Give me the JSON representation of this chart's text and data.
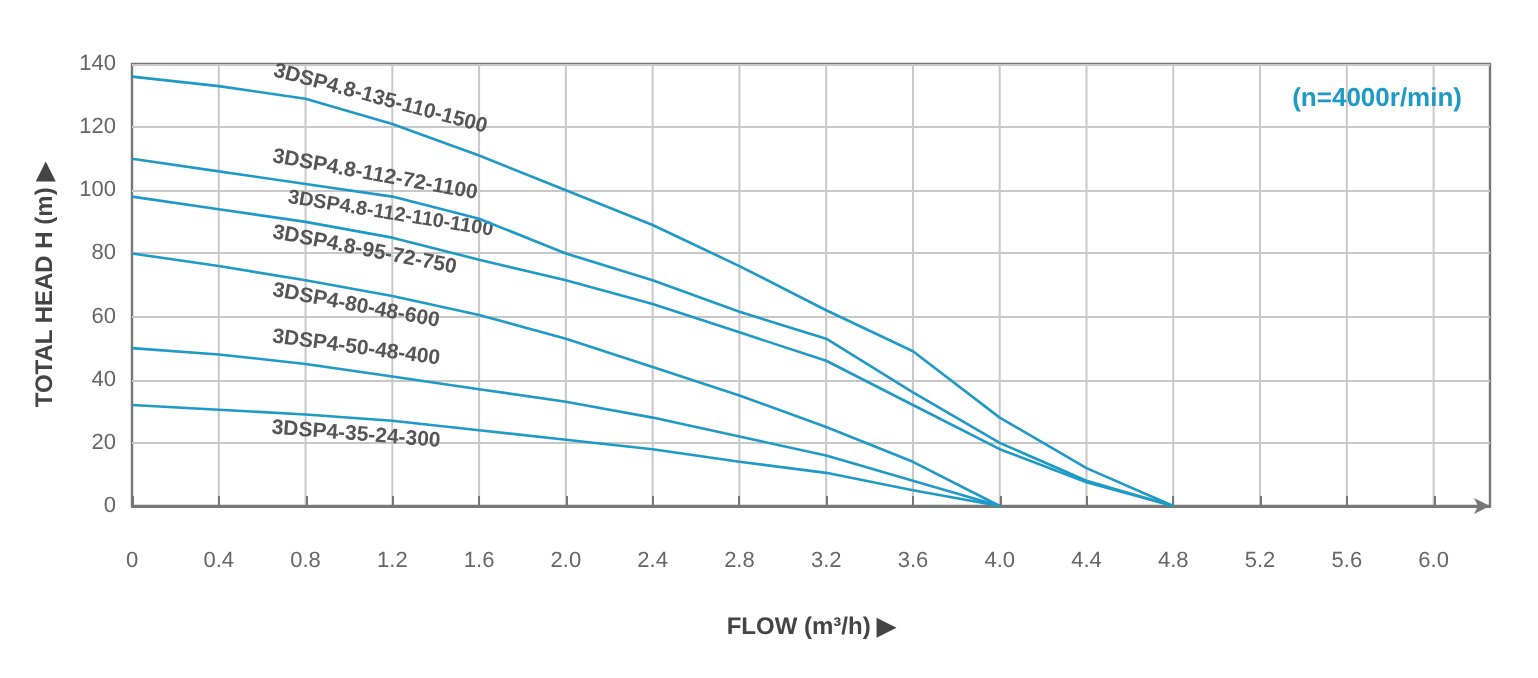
{
  "chart_data": {
    "type": "line",
    "xlabel": "FLOW (m³/h) ▶",
    "ylabel": "TOTAL HEAD H (m) ▶",
    "annotations": [
      "(n=4000r/min)",
      {
        "text": "3DSP4.8-112-110-1100",
        "x": 0.8,
        "y": 102
      }
    ],
    "x": [
      0,
      0.4,
      0.8,
      1.2,
      1.6,
      2.0,
      2.4,
      2.8,
      3.2,
      3.6,
      4.0,
      4.4,
      4.8
    ],
    "series": [
      {
        "name": "3DSP4.8-135-110-1500",
        "color": "#1e9ac6",
        "values": [
          136,
          133,
          129,
          121,
          111,
          100,
          89,
          76,
          62,
          49,
          28,
          12,
          0
        ]
      },
      {
        "name": "3DSP4.8-112-72-1100",
        "color": "#1e9ac6",
        "values": [
          110,
          106,
          102,
          98,
          91,
          80,
          71.5,
          61.5,
          53,
          36,
          20,
          8,
          0
        ]
      },
      {
        "name": "3DSP4.8-95-72-750",
        "color": "#1e9ac6",
        "values": [
          98,
          94,
          90,
          85,
          78,
          71.5,
          64,
          55,
          46,
          32,
          18,
          7.5,
          0
        ]
      },
      {
        "name": "3DSP4-80-48-600",
        "color": "#1e9ac6",
        "values": [
          80,
          76,
          71.5,
          66.5,
          60.5,
          53,
          44,
          35,
          25,
          14,
          0,
          null,
          null
        ]
      },
      {
        "name": "3DSP4-50-48-400",
        "color": "#1e9ac6",
        "values": [
          50,
          48,
          45,
          41,
          37,
          33,
          28,
          22,
          16,
          8,
          0,
          null,
          null
        ]
      },
      {
        "name": "3DSP4-35-24-300",
        "color": "#1e9ac6",
        "values": [
          32,
          30.5,
          29,
          27,
          24,
          21,
          18,
          14,
          10.5,
          5,
          0,
          null,
          null
        ]
      }
    ],
    "xlim": [
      0,
      6.26
    ],
    "xticks": [
      0,
      0.4,
      0.8,
      1.2,
      1.6,
      "2.0",
      2.4,
      2.8,
      3.2,
      3.6,
      "4.0",
      4.4,
      4.8,
      5.2,
      5.6,
      "6.0"
    ],
    "ylim": [
      0,
      140
    ],
    "yticks": [
      0,
      20,
      40,
      60,
      80,
      100,
      120,
      140
    ],
    "grid": true,
    "legend": false,
    "marker": "none",
    "line_style": "solid"
  }
}
